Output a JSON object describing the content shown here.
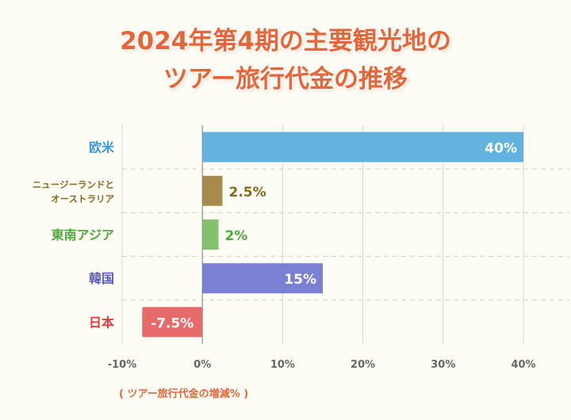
{
  "chart_data": {
    "type": "bar",
    "orientation": "horizontal",
    "title_lines": [
      "2024年第4期の主要観光地の",
      "ツアー旅行代金の推移"
    ],
    "categories": [
      "欧米",
      "ニュージーランドと|オーストラリア",
      "東南アジア",
      "韓国",
      "日本"
    ],
    "values": [
      40,
      2.5,
      2,
      15,
      -7.5
    ],
    "data_labels": [
      "40%",
      "2.5%",
      "2%",
      "15%",
      "-7.5%"
    ],
    "bar_colors": [
      "#62b1de",
      "#a88b4c",
      "#84c16c",
      "#7a80d2",
      "#e76a6a"
    ],
    "category_colors": [
      "#3a9ad9",
      "#8a6a1e",
      "#4ea83a",
      "#5a5cc0",
      "#e03a3a"
    ],
    "label_inside": [
      true,
      false,
      false,
      true,
      true
    ],
    "xlim": [
      -10,
      40
    ],
    "xticks": [
      -10,
      0,
      10,
      20,
      30,
      40
    ],
    "xtick_labels": [
      "-10%",
      "0%",
      "10%",
      "20%",
      "30%",
      "40%"
    ],
    "xlabel": "( ツアー旅行代金の増減% )",
    "grid": true
  }
}
